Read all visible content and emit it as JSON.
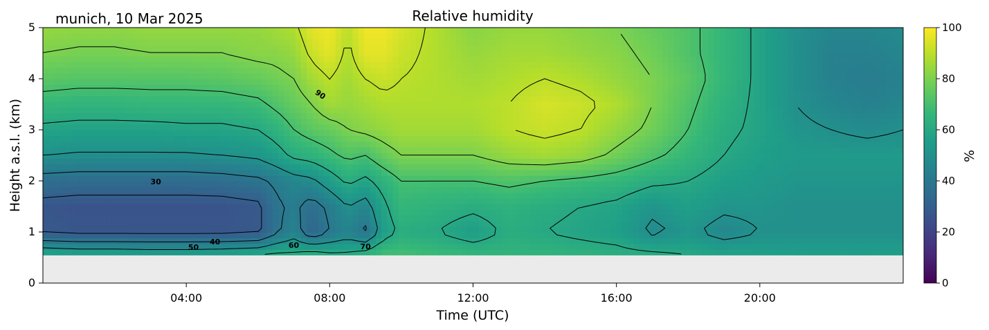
{
  "chart_data": {
    "type": "heatmap",
    "title": "Relative humidity",
    "subtitle": "munich, 10 Mar 2025",
    "xlabel": "Time (UTC)",
    "ylabel": "Height a.s.l. (km)",
    "colorbar_label": "%",
    "xlim": [
      0,
      24
    ],
    "ylim": [
      0,
      5
    ],
    "data_bottom_km": 0.55,
    "x_ticks": [
      {
        "value": 4,
        "label": "04:00"
      },
      {
        "value": 8,
        "label": "08:00"
      },
      {
        "value": 12,
        "label": "12:00"
      },
      {
        "value": 16,
        "label": "16:00"
      },
      {
        "value": 20,
        "label": "20:00"
      }
    ],
    "y_ticks": [
      0,
      1,
      2,
      3,
      4,
      5
    ],
    "colorbar_ticks": [
      0,
      20,
      40,
      60,
      80,
      100
    ],
    "colorbar_range": [
      0,
      100
    ],
    "colormap": "viridis",
    "colormap_stops": [
      "#440154",
      "#482878",
      "#3e4989",
      "#31688e",
      "#26828e",
      "#1f9e89",
      "#35b779",
      "#6ece58",
      "#b5de2b",
      "#fde725"
    ],
    "no_data_color": "#ebebeb",
    "contour_levels": [
      30,
      40,
      50,
      60,
      70,
      80,
      90
    ],
    "contour_labels": [
      {
        "text": "90",
        "x": 7.7,
        "y": 3.65,
        "angle": 35
      },
      {
        "text": "30",
        "x": 3.15,
        "y": 1.93,
        "angle": 0
      },
      {
        "text": "40",
        "x": 4.8,
        "y": 0.76,
        "angle": 0
      },
      {
        "text": "50",
        "x": 4.2,
        "y": 0.65,
        "angle": 0
      },
      {
        "text": "60",
        "x": 7.0,
        "y": 0.69,
        "angle": 0
      },
      {
        "text": "70",
        "x": 9.0,
        "y": 0.66,
        "angle": 0
      }
    ],
    "time_hours": [
      0,
      1,
      2,
      3,
      4,
      5,
      6,
      6.5,
      7,
      7.5,
      8,
      8.5,
      9,
      9.5,
      10,
      11,
      12,
      13,
      14,
      15,
      16,
      17,
      18,
      19,
      20,
      21,
      22,
      23,
      24
    ],
    "heights_km": [
      0.55,
      1.0,
      1.5,
      2.0,
      2.5,
      3.0,
      3.5,
      4.0,
      4.5,
      5.0
    ],
    "rh_percent": [
      [
        60,
        58,
        58,
        57,
        57,
        58,
        60,
        62,
        62,
        65,
        62,
        62,
        65,
        70,
        70,
        68,
        66,
        65,
        65,
        64,
        63,
        62,
        60,
        58,
        57,
        56,
        56,
        56,
        56
      ],
      [
        28,
        27,
        27,
        27,
        27,
        27,
        28,
        38,
        45,
        32,
        40,
        45,
        38,
        55,
        62,
        60,
        55,
        62,
        60,
        58,
        56,
        48,
        52,
        46,
        50,
        50,
        50,
        50,
        50
      ],
      [
        27,
        26,
        26,
        26,
        26,
        26,
        28,
        38,
        42,
        36,
        42,
        50,
        46,
        58,
        66,
        64,
        62,
        64,
        62,
        60,
        58,
        52,
        56,
        52,
        52,
        50,
        50,
        50,
        50
      ],
      [
        36,
        35,
        35,
        35,
        35,
        36,
        38,
        42,
        46,
        48,
        55,
        62,
        58,
        64,
        70,
        70,
        70,
        72,
        70,
        68,
        66,
        62,
        60,
        56,
        54,
        52,
        52,
        52,
        52
      ],
      [
        50,
        49,
        49,
        49,
        49,
        50,
        52,
        56,
        62,
        64,
        68,
        72,
        70,
        76,
        80,
        80,
        80,
        84,
        86,
        84,
        78,
        72,
        66,
        60,
        56,
        54,
        54,
        54,
        54
      ],
      [
        58,
        57,
        57,
        57,
        58,
        58,
        60,
        64,
        70,
        74,
        76,
        80,
        82,
        84,
        86,
        86,
        86,
        90,
        92,
        90,
        84,
        78,
        70,
        62,
        58,
        52,
        50,
        48,
        50
      ],
      [
        66,
        65,
        65,
        66,
        66,
        66,
        68,
        72,
        76,
        80,
        86,
        84,
        86,
        88,
        88,
        88,
        88,
        90,
        94,
        92,
        88,
        80,
        72,
        64,
        58,
        50,
        46,
        44,
        46
      ],
      [
        74,
        73,
        73,
        73,
        73,
        74,
        76,
        78,
        80,
        86,
        90,
        86,
        90,
        92,
        90,
        88,
        86,
        88,
        90,
        88,
        84,
        80,
        74,
        66,
        58,
        50,
        44,
        42,
        44
      ],
      [
        80,
        79,
        79,
        80,
        80,
        80,
        82,
        82,
        84,
        92,
        96,
        88,
        96,
        96,
        92,
        88,
        84,
        86,
        86,
        84,
        82,
        78,
        72,
        66,
        58,
        50,
        44,
        44,
        46
      ],
      [
        84,
        83,
        83,
        84,
        84,
        84,
        84,
        86,
        88,
        96,
        98,
        90,
        98,
        98,
        94,
        88,
        82,
        84,
        84,
        82,
        80,
        76,
        72,
        66,
        58,
        50,
        46,
        46,
        48
      ]
    ]
  }
}
